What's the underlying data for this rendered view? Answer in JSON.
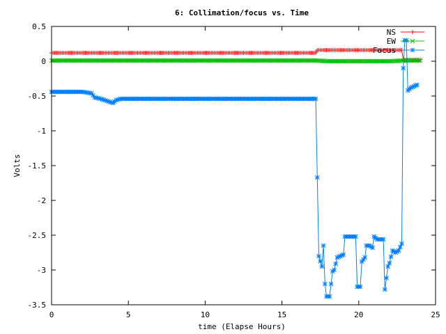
{
  "chart_data": {
    "type": "line",
    "title": "6: Collimation/focus vs. Time",
    "xlabel": "time (Elapse Hours)",
    "ylabel": "Volts",
    "xlim": [
      0,
      25
    ],
    "ylim": [
      -3.5,
      0.5
    ],
    "xticks": [
      "0",
      "5",
      "10",
      "15",
      "20",
      "25"
    ],
    "yticks": [
      "0.5",
      "0",
      "-0.5",
      "-1",
      "-1.5",
      "-2",
      "-2.5",
      "-3",
      "-3.5"
    ],
    "grid": false,
    "legend": "top-right",
    "series": [
      {
        "name": "NS",
        "color": "#ff0000",
        "marker": "plus",
        "points": [
          [
            0,
            0.12
          ],
          [
            3,
            0.12
          ],
          [
            6,
            0.12
          ],
          [
            9,
            0.12
          ],
          [
            12,
            0.12
          ],
          [
            15,
            0.12
          ],
          [
            17.2,
            0.12
          ],
          [
            17.3,
            0.16
          ],
          [
            20,
            0.16
          ],
          [
            22.8,
            0.16
          ],
          [
            22.9,
            0.02
          ],
          [
            24,
            0.02
          ]
        ]
      },
      {
        "name": "EW",
        "color": "#00c000",
        "marker": "cross",
        "points": [
          [
            0,
            0.01
          ],
          [
            5,
            0.01
          ],
          [
            10,
            0.01
          ],
          [
            15,
            0.01
          ],
          [
            17.2,
            0.01
          ],
          [
            18,
            0.0
          ],
          [
            20,
            0.0
          ],
          [
            22,
            0.0
          ],
          [
            23,
            0.01
          ],
          [
            24,
            0.01
          ]
        ]
      },
      {
        "name": "Focus",
        "color": "#0080ff",
        "marker": "star",
        "points": [
          [
            0,
            -0.44
          ],
          [
            1,
            -0.44
          ],
          [
            2,
            -0.44
          ],
          [
            2.6,
            -0.46
          ],
          [
            2.8,
            -0.52
          ],
          [
            3.2,
            -0.54
          ],
          [
            3.6,
            -0.57
          ],
          [
            4.0,
            -0.6
          ],
          [
            4.2,
            -0.56
          ],
          [
            4.5,
            -0.54
          ],
          [
            5,
            -0.54
          ],
          [
            8,
            -0.54
          ],
          [
            11,
            -0.54
          ],
          [
            14,
            -0.54
          ],
          [
            17.2,
            -0.54
          ],
          [
            17.4,
            -2.8
          ],
          [
            17.6,
            -2.95
          ],
          [
            17.7,
            -2.65
          ],
          [
            17.8,
            -3.2
          ],
          [
            17.9,
            -3.38
          ],
          [
            18.1,
            -3.38
          ],
          [
            18.3,
            -3.02
          ],
          [
            18.4,
            -3.0
          ],
          [
            18.6,
            -2.82
          ],
          [
            18.8,
            -2.8
          ],
          [
            19.0,
            -2.78
          ],
          [
            19.1,
            -2.52
          ],
          [
            19.3,
            -2.52
          ],
          [
            19.5,
            -2.52
          ],
          [
            19.8,
            -2.52
          ],
          [
            19.9,
            -3.24
          ],
          [
            20.1,
            -3.24
          ],
          [
            20.2,
            -2.88
          ],
          [
            20.4,
            -2.82
          ],
          [
            20.5,
            -2.65
          ],
          [
            20.7,
            -2.65
          ],
          [
            20.9,
            -2.68
          ],
          [
            21.0,
            -2.52
          ],
          [
            21.2,
            -2.56
          ],
          [
            21.4,
            -2.56
          ],
          [
            21.6,
            -2.56
          ],
          [
            21.7,
            -3.28
          ],
          [
            21.9,
            -2.95
          ],
          [
            22.0,
            -2.9
          ],
          [
            22.2,
            -2.72
          ],
          [
            22.4,
            -2.75
          ],
          [
            22.6,
            -2.72
          ],
          [
            22.8,
            -2.62
          ],
          [
            22.9,
            -0.1
          ],
          [
            23.0,
            0.3
          ],
          [
            23.1,
            0.3
          ],
          [
            23.2,
            -0.42
          ],
          [
            23.4,
            -0.38
          ],
          [
            23.6,
            -0.36
          ],
          [
            23.8,
            -0.34
          ]
        ]
      }
    ]
  }
}
